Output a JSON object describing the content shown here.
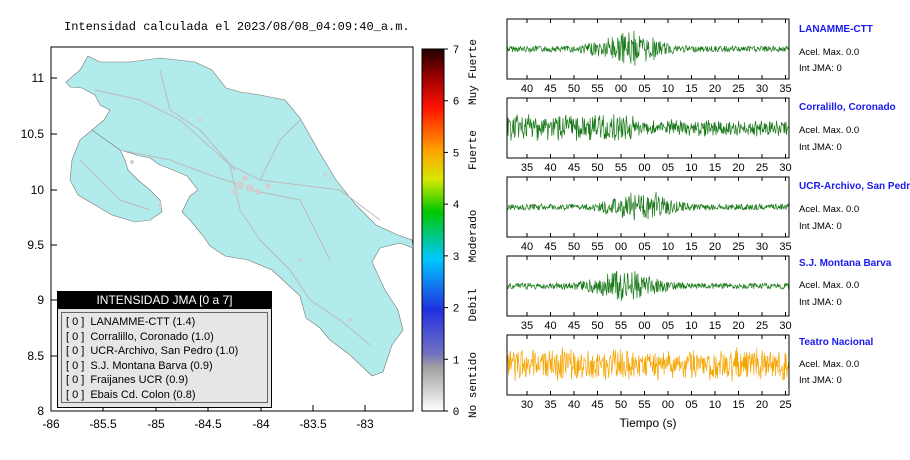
{
  "title": "Intensidad calculada el 2023/08/08_04:09:40_a.m.",
  "map": {
    "y_ticks": [
      "11",
      "10.5",
      "10",
      "9.5",
      "9",
      "8.5",
      "8"
    ],
    "x_ticks": [
      "-86",
      "-85.5",
      "-85",
      "-84.5",
      "-84",
      "-83.5",
      "-83"
    ]
  },
  "colorbar": {
    "ticks": [
      "7",
      "6",
      "5",
      "4",
      "3",
      "2",
      "1",
      "0"
    ],
    "categories": [
      "Muy Fuerte",
      "Fuerte",
      "Moderado",
      "Debil",
      "No sentido"
    ]
  },
  "legend": {
    "header": "INTENSIDAD JMA [0 a 7]",
    "rows": [
      {
        "level": "[ 0 ]",
        "station": "LANAMME-CTT (1.4)"
      },
      {
        "level": "[ 0 ]",
        "station": "Corralillo, Coronado (1.0)"
      },
      {
        "level": "[ 0 ]",
        "station": "UCR-Archivo, San Pedro (1.0)"
      },
      {
        "level": "[ 0 ]",
        "station": "S.J. Montana Barva (0.9)"
      },
      {
        "level": "[ 0 ]",
        "station": "Fraijanes UCR (0.9)"
      },
      {
        "level": "[ 0 ]",
        "station": "Ebais Cd. Colon (0.8)"
      }
    ]
  },
  "waveforms": [
    {
      "name": "LANAMME-CTT",
      "accel": "Acel. Max. 0.0",
      "int": "Int JMA: 0",
      "ticks": [
        "40",
        "45",
        "50",
        "55",
        "00",
        "05",
        "10",
        "15",
        "20",
        "25",
        "30",
        "35"
      ],
      "color": "#1a7a1a"
    },
    {
      "name": "Corralillo, Coronado",
      "accel": "Acel. Max. 0.0",
      "int": "Int JMA: 0",
      "ticks": [
        "35",
        "40",
        "45",
        "50",
        "55",
        "00",
        "05",
        "10",
        "15",
        "20",
        "25",
        "30"
      ],
      "color": "#1a7a1a"
    },
    {
      "name": "UCR-Archivo, San Pedro",
      "accel": "Acel. Max. 0.0",
      "int": "Int JMA: 0",
      "ticks": [
        "40",
        "45",
        "50",
        "55",
        "00",
        "05",
        "10",
        "15",
        "20",
        "25",
        "30",
        "35"
      ],
      "color": "#1a7a1a"
    },
    {
      "name": "S.J. Montana Barva",
      "accel": "Acel. Max. 0.0",
      "int": "Int JMA: 0",
      "ticks": [
        "35",
        "40",
        "45",
        "50",
        "55",
        "00",
        "05",
        "10",
        "15",
        "20",
        "25",
        "30"
      ],
      "color": "#1a7a1a"
    },
    {
      "name": "Teatro Nacional",
      "accel": "Acel. Max. 0.0",
      "int": "Int JMA: 0",
      "ticks": [
        "30",
        "35",
        "40",
        "45",
        "50",
        "55",
        "00",
        "05",
        "10",
        "15",
        "20",
        "25"
      ],
      "color": "#f5a500"
    }
  ],
  "time_axis_label": "Tiempo (s)"
}
